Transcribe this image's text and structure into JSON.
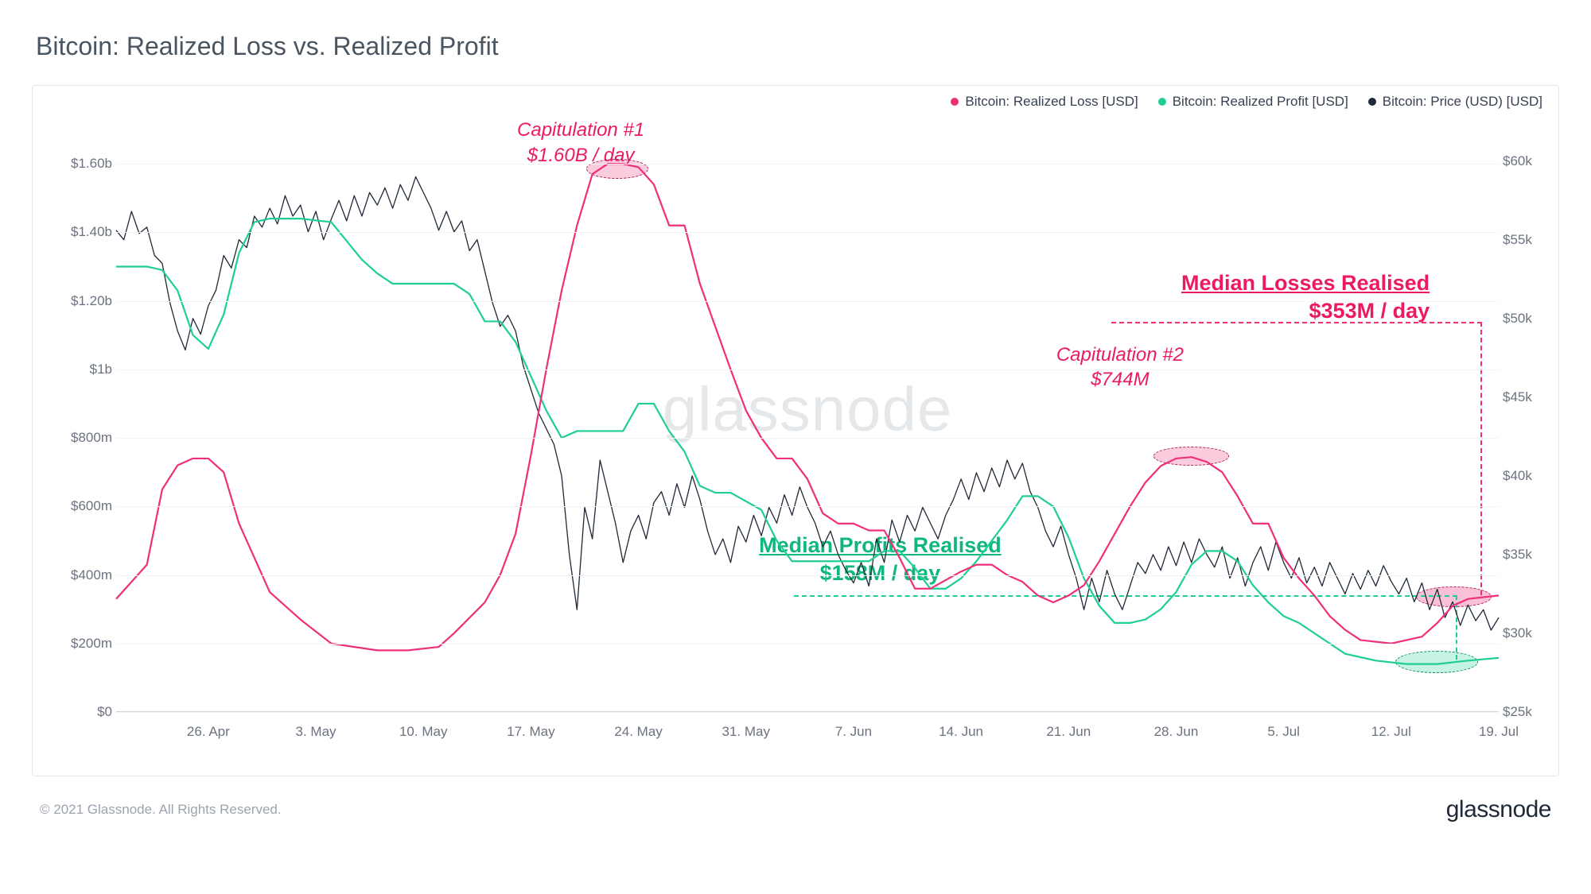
{
  "title": "Bitcoin: Realized Loss vs. Realized Profit",
  "copyright": "© 2021 Glassnode. All Rights Reserved.",
  "brand": "glassnode",
  "watermark": "glassnode",
  "colors": {
    "loss": "#f02f7a",
    "profit": "#1fce94",
    "price": "#1f2937",
    "grid": "#f3f4f6",
    "text": "#6b7280",
    "border": "#e5e7eb"
  },
  "legend": [
    {
      "label": "Bitcoin: Realized Loss [USD]",
      "color": "#f02f7a"
    },
    {
      "label": "Bitcoin: Realized Profit [USD]",
      "color": "#1fce94"
    },
    {
      "label": "Bitcoin: Price (USD) [USD]",
      "color": "#1f2937"
    }
  ],
  "y_left": {
    "min": 0,
    "max": 1700000000,
    "ticks": [
      {
        "v": 0,
        "label": "$0"
      },
      {
        "v": 200000000,
        "label": "$200m"
      },
      {
        "v": 400000000,
        "label": "$400m"
      },
      {
        "v": 600000000,
        "label": "$600m"
      },
      {
        "v": 800000000,
        "label": "$800m"
      },
      {
        "v": 1000000000,
        "label": "$1b"
      },
      {
        "v": 1200000000,
        "label": "$1.20b"
      },
      {
        "v": 1400000000,
        "label": "$1.40b"
      },
      {
        "v": 1600000000,
        "label": "$1.60b"
      }
    ]
  },
  "y_right": {
    "min": 25000,
    "max": 62000,
    "ticks": [
      {
        "v": 25000,
        "label": "$25k"
      },
      {
        "v": 30000,
        "label": "$30k"
      },
      {
        "v": 35000,
        "label": "$35k"
      },
      {
        "v": 40000,
        "label": "$40k"
      },
      {
        "v": 45000,
        "label": "$45k"
      },
      {
        "v": 50000,
        "label": "$50k"
      },
      {
        "v": 55000,
        "label": "$55k"
      },
      {
        "v": 60000,
        "label": "$60k"
      }
    ]
  },
  "x": {
    "min": 0,
    "max": 90,
    "ticks": [
      {
        "v": 6,
        "label": "26. Apr"
      },
      {
        "v": 13,
        "label": "3. May"
      },
      {
        "v": 20,
        "label": "10. May"
      },
      {
        "v": 27,
        "label": "17. May"
      },
      {
        "v": 34,
        "label": "24. May"
      },
      {
        "v": 41,
        "label": "31. May"
      },
      {
        "v": 48,
        "label": "7. Jun"
      },
      {
        "v": 55,
        "label": "14. Jun"
      },
      {
        "v": 62,
        "label": "21. Jun"
      },
      {
        "v": 69,
        "label": "28. Jun"
      },
      {
        "v": 76,
        "label": "5. Jul"
      },
      {
        "v": 83,
        "label": "12. Jul"
      },
      {
        "v": 90,
        "label": "19. Jul"
      }
    ]
  },
  "series_loss": [
    [
      0,
      330
    ],
    [
      2,
      430
    ],
    [
      3,
      650
    ],
    [
      4,
      720
    ],
    [
      5,
      740
    ],
    [
      6,
      740
    ],
    [
      7,
      700
    ],
    [
      8,
      550
    ],
    [
      10,
      350
    ],
    [
      12,
      270
    ],
    [
      14,
      200
    ],
    [
      17,
      180
    ],
    [
      19,
      180
    ],
    [
      21,
      190
    ],
    [
      22,
      230
    ],
    [
      24,
      320
    ],
    [
      25,
      400
    ],
    [
      26,
      520
    ],
    [
      27,
      750
    ],
    [
      28,
      1000
    ],
    [
      29,
      1230
    ],
    [
      30,
      1420
    ],
    [
      31,
      1570
    ],
    [
      32,
      1600
    ],
    [
      33,
      1600
    ],
    [
      34,
      1590
    ],
    [
      35,
      1540
    ],
    [
      36,
      1420
    ],
    [
      37,
      1420
    ],
    [
      38,
      1250
    ],
    [
      40,
      1000
    ],
    [
      41,
      880
    ],
    [
      42,
      800
    ],
    [
      43,
      740
    ],
    [
      44,
      740
    ],
    [
      45,
      680
    ],
    [
      46,
      580
    ],
    [
      47,
      550
    ],
    [
      48,
      550
    ],
    [
      49,
      530
    ],
    [
      50,
      530
    ],
    [
      51,
      450
    ],
    [
      52,
      360
    ],
    [
      53,
      360
    ],
    [
      55,
      410
    ],
    [
      56,
      430
    ],
    [
      57,
      430
    ],
    [
      58,
      400
    ],
    [
      59,
      380
    ],
    [
      60,
      340
    ],
    [
      61,
      320
    ],
    [
      62,
      340
    ],
    [
      63,
      370
    ],
    [
      64,
      440
    ],
    [
      65,
      520
    ],
    [
      66,
      600
    ],
    [
      67,
      670
    ],
    [
      68,
      718
    ],
    [
      69,
      740
    ],
    [
      70,
      744
    ],
    [
      71,
      730
    ],
    [
      72,
      700
    ],
    [
      73,
      630
    ],
    [
      74,
      550
    ],
    [
      75,
      550
    ],
    [
      76,
      450
    ],
    [
      77,
      390
    ],
    [
      78,
      340
    ],
    [
      79,
      280
    ],
    [
      80,
      240
    ],
    [
      81,
      210
    ],
    [
      83,
      200
    ],
    [
      85,
      220
    ],
    [
      86,
      260
    ],
    [
      87,
      310
    ],
    [
      88,
      330
    ],
    [
      90,
      340
    ]
  ],
  "series_profit": [
    [
      0,
      1300
    ],
    [
      2,
      1300
    ],
    [
      3,
      1290
    ],
    [
      4,
      1230
    ],
    [
      5,
      1100
    ],
    [
      6,
      1060
    ],
    [
      7,
      1160
    ],
    [
      8,
      1340
    ],
    [
      9,
      1430
    ],
    [
      10,
      1440
    ],
    [
      11,
      1440
    ],
    [
      12,
      1440
    ],
    [
      14,
      1430
    ],
    [
      16,
      1320
    ],
    [
      17,
      1280
    ],
    [
      18,
      1250
    ],
    [
      19,
      1250
    ],
    [
      22,
      1250
    ],
    [
      23,
      1220
    ],
    [
      24,
      1140
    ],
    [
      25,
      1140
    ],
    [
      26,
      1080
    ],
    [
      27,
      980
    ],
    [
      28,
      880
    ],
    [
      29,
      800
    ],
    [
      30,
      820
    ],
    [
      31,
      820
    ],
    [
      33,
      820
    ],
    [
      34,
      900
    ],
    [
      35,
      900
    ],
    [
      36,
      820
    ],
    [
      37,
      760
    ],
    [
      38,
      660
    ],
    [
      39,
      640
    ],
    [
      40,
      640
    ],
    [
      42,
      590
    ],
    [
      43,
      500
    ],
    [
      44,
      440
    ],
    [
      45,
      440
    ],
    [
      49,
      440
    ],
    [
      50,
      470
    ],
    [
      51,
      470
    ],
    [
      52,
      420
    ],
    [
      53,
      360
    ],
    [
      54,
      360
    ],
    [
      55,
      390
    ],
    [
      56,
      440
    ],
    [
      57,
      500
    ],
    [
      58,
      560
    ],
    [
      59,
      630
    ],
    [
      60,
      630
    ],
    [
      61,
      600
    ],
    [
      62,
      510
    ],
    [
      63,
      390
    ],
    [
      64,
      310
    ],
    [
      65,
      260
    ],
    [
      66,
      260
    ],
    [
      67,
      270
    ],
    [
      68,
      300
    ],
    [
      69,
      350
    ],
    [
      70,
      430
    ],
    [
      71,
      470
    ],
    [
      72,
      470
    ],
    [
      73,
      440
    ],
    [
      74,
      370
    ],
    [
      75,
      320
    ],
    [
      76,
      280
    ],
    [
      77,
      260
    ],
    [
      78,
      230
    ],
    [
      79,
      200
    ],
    [
      80,
      170
    ],
    [
      81,
      160
    ],
    [
      82,
      150
    ],
    [
      84,
      140
    ],
    [
      86,
      140
    ],
    [
      88,
      150
    ],
    [
      90,
      158
    ]
  ],
  "series_price": [
    [
      0,
      55.6
    ],
    [
      0.5,
      55.0
    ],
    [
      1,
      56.8
    ],
    [
      1.5,
      55.4
    ],
    [
      2,
      55.8
    ],
    [
      2.5,
      54.0
    ],
    [
      3,
      53.5
    ],
    [
      3.5,
      51.0
    ],
    [
      4,
      49.2
    ],
    [
      4.5,
      48.0
    ],
    [
      5,
      50.0
    ],
    [
      5.5,
      49.0
    ],
    [
      6,
      50.8
    ],
    [
      6.5,
      51.8
    ],
    [
      7,
      54.0
    ],
    [
      7.5,
      53.2
    ],
    [
      8,
      55.0
    ],
    [
      8.5,
      54.5
    ],
    [
      9,
      56.5
    ],
    [
      9.5,
      55.8
    ],
    [
      10,
      57.0
    ],
    [
      10.5,
      56.0
    ],
    [
      11,
      57.8
    ],
    [
      11.5,
      56.5
    ],
    [
      12,
      57.2
    ],
    [
      12.5,
      55.5
    ],
    [
      13,
      56.8
    ],
    [
      13.5,
      55.0
    ],
    [
      14,
      56.3
    ],
    [
      14.5,
      57.5
    ],
    [
      15,
      56.2
    ],
    [
      15.5,
      57.8
    ],
    [
      16,
      56.5
    ],
    [
      16.5,
      58.0
    ],
    [
      17,
      57.2
    ],
    [
      17.5,
      58.3
    ],
    [
      18,
      57.0
    ],
    [
      18.5,
      58.5
    ],
    [
      19,
      57.5
    ],
    [
      19.5,
      59.0
    ],
    [
      20,
      58.0
    ],
    [
      20.5,
      57.0
    ],
    [
      21,
      55.6
    ],
    [
      21.5,
      56.8
    ],
    [
      22,
      55.5
    ],
    [
      22.5,
      56.2
    ],
    [
      23,
      54.3
    ],
    [
      23.5,
      55.0
    ],
    [
      24,
      53.0
    ],
    [
      24.5,
      51.0
    ],
    [
      25,
      49.5
    ],
    [
      25.5,
      50.2
    ],
    [
      26,
      49.2
    ],
    [
      26.5,
      47.0
    ],
    [
      27,
      45.5
    ],
    [
      27.5,
      44.0
    ],
    [
      28,
      43.0
    ],
    [
      28.5,
      42.0
    ],
    [
      29,
      40.0
    ],
    [
      29.5,
      35.0
    ],
    [
      30,
      31.5
    ],
    [
      30.5,
      38.0
    ],
    [
      31,
      36.0
    ],
    [
      31.5,
      41.0
    ],
    [
      32,
      39.0
    ],
    [
      32.5,
      37.0
    ],
    [
      33,
      34.5
    ],
    [
      33.5,
      36.5
    ],
    [
      34,
      37.5
    ],
    [
      34.5,
      36.0
    ],
    [
      35,
      38.3
    ],
    [
      35.5,
      39.0
    ],
    [
      36,
      37.5
    ],
    [
      36.5,
      39.5
    ],
    [
      37,
      38.0
    ],
    [
      37.5,
      40.0
    ],
    [
      38,
      38.5
    ],
    [
      38.5,
      36.5
    ],
    [
      39,
      35.0
    ],
    [
      39.5,
      36.0
    ],
    [
      40,
      34.5
    ],
    [
      40.5,
      36.8
    ],
    [
      41,
      35.8
    ],
    [
      41.5,
      37.5
    ],
    [
      42,
      36.2
    ],
    [
      42.5,
      38.0
    ],
    [
      43,
      37.0
    ],
    [
      43.5,
      38.8
    ],
    [
      44,
      37.5
    ],
    [
      44.5,
      39.3
    ],
    [
      45,
      38.0
    ],
    [
      45.5,
      37.0
    ],
    [
      46,
      35.5
    ],
    [
      46.5,
      36.5
    ],
    [
      47,
      35.0
    ],
    [
      47.5,
      34.0
    ],
    [
      48,
      33.2
    ],
    [
      48.5,
      34.5
    ],
    [
      49,
      33.0
    ],
    [
      49.5,
      36.0
    ],
    [
      50,
      34.5
    ],
    [
      50.5,
      37.2
    ],
    [
      51,
      35.8
    ],
    [
      51.5,
      37.5
    ],
    [
      52,
      36.5
    ],
    [
      52.5,
      38.0
    ],
    [
      53,
      37.0
    ],
    [
      53.5,
      36.0
    ],
    [
      54,
      37.5
    ],
    [
      54.5,
      38.5
    ],
    [
      55,
      39.8
    ],
    [
      55.5,
      38.5
    ],
    [
      56,
      40.2
    ],
    [
      56.5,
      39.0
    ],
    [
      57,
      40.5
    ],
    [
      57.5,
      39.3
    ],
    [
      58,
      41.0
    ],
    [
      58.5,
      39.8
    ],
    [
      59,
      40.8
    ],
    [
      59.5,
      39.0
    ],
    [
      60,
      38.0
    ],
    [
      60.5,
      36.5
    ],
    [
      61,
      35.5
    ],
    [
      61.5,
      36.8
    ],
    [
      62,
      35.0
    ],
    [
      62.5,
      33.5
    ],
    [
      63,
      31.5
    ],
    [
      63.5,
      33.5
    ],
    [
      64,
      32.0
    ],
    [
      64.5,
      34.0
    ],
    [
      65,
      32.5
    ],
    [
      65.5,
      31.5
    ],
    [
      66,
      33.0
    ],
    [
      66.5,
      34.5
    ],
    [
      67,
      33.8
    ],
    [
      67.5,
      35.0
    ],
    [
      68,
      34.0
    ],
    [
      68.5,
      35.5
    ],
    [
      69,
      34.3
    ],
    [
      69.5,
      35.8
    ],
    [
      70,
      34.5
    ],
    [
      70.5,
      36.0
    ],
    [
      71,
      35.0
    ],
    [
      71.5,
      34.2
    ],
    [
      72,
      35.5
    ],
    [
      72.5,
      33.5
    ],
    [
      73,
      34.8
    ],
    [
      73.5,
      33.0
    ],
    [
      74,
      34.5
    ],
    [
      74.5,
      35.5
    ],
    [
      75,
      34.0
    ],
    [
      75.5,
      35.8
    ],
    [
      76,
      34.5
    ],
    [
      76.5,
      33.5
    ],
    [
      77,
      34.8
    ],
    [
      77.5,
      33.2
    ],
    [
      78,
      34.2
    ],
    [
      78.5,
      33.0
    ],
    [
      79,
      34.5
    ],
    [
      79.5,
      33.5
    ],
    [
      80,
      32.5
    ],
    [
      80.5,
      33.8
    ],
    [
      81,
      32.8
    ],
    [
      81.5,
      34.0
    ],
    [
      82,
      33.0
    ],
    [
      82.5,
      34.3
    ],
    [
      83,
      33.3
    ],
    [
      83.5,
      32.5
    ],
    [
      84,
      33.5
    ],
    [
      84.5,
      32.0
    ],
    [
      85,
      33.2
    ],
    [
      85.5,
      31.5
    ],
    [
      86,
      32.8
    ],
    [
      86.5,
      31.0
    ],
    [
      87,
      32.0
    ],
    [
      87.5,
      30.5
    ],
    [
      88,
      31.8
    ],
    [
      88.5,
      30.8
    ],
    [
      89,
      31.5
    ],
    [
      89.5,
      30.2
    ],
    [
      90,
      31.0
    ]
  ],
  "annotations": {
    "cap1": {
      "line1": "Capitulation #1",
      "line2": "$1.60B / day"
    },
    "cap2": {
      "line1": "Capitulation #2",
      "line2": "$744M"
    },
    "med_loss": {
      "line1": "Median Losses Realised",
      "line2": "$353M / day"
    },
    "med_profit": {
      "line1": "Median Profits Realised",
      "line2": "$158M / day"
    }
  },
  "line_widths": {
    "loss": 2.2,
    "profit": 2.2,
    "price": 1.3
  }
}
